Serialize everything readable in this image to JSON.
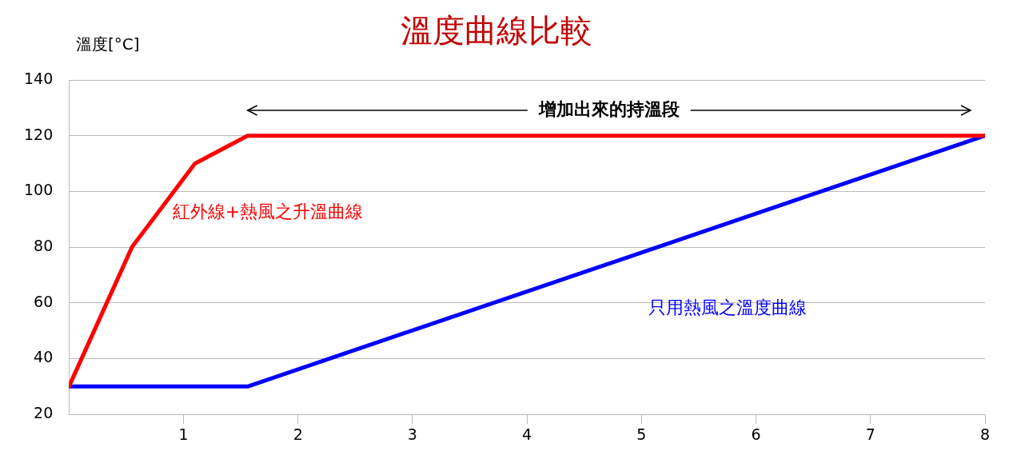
{
  "chart_data": {
    "type": "line",
    "title": "溫度曲線比較",
    "ylabel": "溫度[°C]",
    "xlim": [
      0,
      8
    ],
    "xticks": [
      1,
      2,
      3,
      4,
      5,
      6,
      7,
      8
    ],
    "ylim": [
      20,
      140
    ],
    "yticks": [
      20,
      40,
      60,
      80,
      100,
      120,
      140
    ],
    "grid": "y",
    "legend": false,
    "marker": "none",
    "line_style": "solid",
    "annotations": [
      "增加出來的持溫段"
    ],
    "series": [
      {
        "name": "紅外線+熱風之升溫曲線",
        "color": "#ff0000",
        "x": [
          0,
          0.55,
          1.1,
          1.56,
          8
        ],
        "values": [
          30,
          80,
          110,
          120,
          120
        ]
      },
      {
        "name": "只用熱風之溫度曲線",
        "color": "#0000ff",
        "x": [
          0,
          1.56,
          8
        ],
        "values": [
          30,
          30,
          120
        ]
      }
    ]
  }
}
